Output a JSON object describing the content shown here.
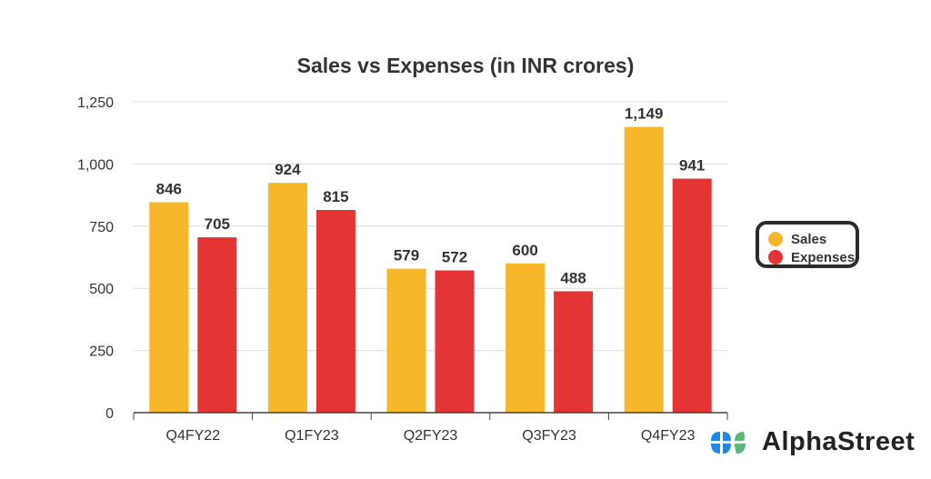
{
  "chart_data": {
    "type": "bar",
    "title": "Sales vs Expenses (in INR crores)",
    "categories": [
      "Q4FY22",
      "Q1FY23",
      "Q2FY23",
      "Q3FY23",
      "Q4FY23"
    ],
    "series": [
      {
        "name": "Sales",
        "values": [
          846,
          924,
          579,
          600,
          1149
        ],
        "labels": [
          "846",
          "924",
          "579",
          "600",
          "1,149"
        ],
        "color": "#f6b72b"
      },
      {
        "name": "Expenses",
        "values": [
          705,
          815,
          572,
          488,
          941
        ],
        "labels": [
          "705",
          "815",
          "572",
          "488",
          "941"
        ],
        "color": "#e53434"
      }
    ],
    "ylim": [
      0,
      1250
    ],
    "yticks": [
      0,
      250,
      500,
      750,
      1000,
      1250
    ],
    "ytick_labels": [
      "0",
      "250",
      "500",
      "750",
      "1,000",
      "1,250"
    ],
    "grid": true,
    "legend_position": "right"
  },
  "brand": {
    "name": "AlphaStreet"
  }
}
